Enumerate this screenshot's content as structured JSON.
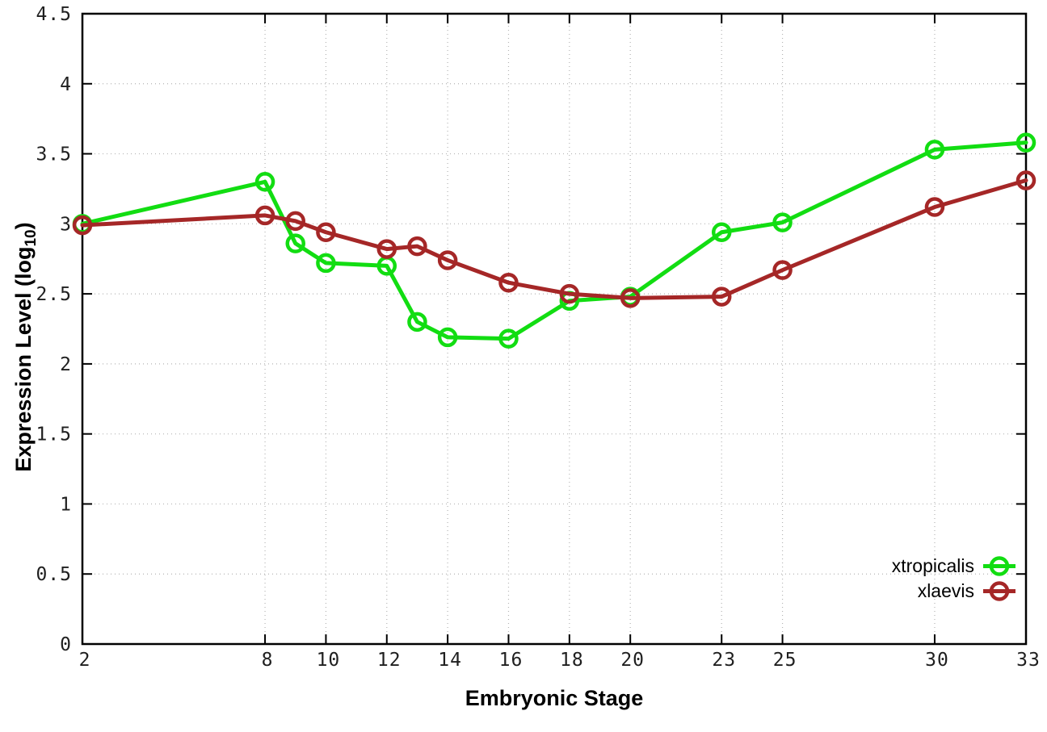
{
  "chart_data": {
    "type": "line",
    "title": "",
    "xlabel": "Embryonic Stage",
    "ylabel_prefix": "Expression Level (log",
    "ylabel_sub": "10",
    "ylabel_suffix": ")",
    "x": [
      2,
      8,
      9,
      10,
      12,
      13,
      14,
      16,
      18,
      20,
      23,
      25,
      30,
      33
    ],
    "x_ticks": [
      2,
      8,
      10,
      12,
      14,
      16,
      18,
      20,
      23,
      25,
      30,
      33
    ],
    "y_ticks": [
      0,
      0.5,
      1,
      1.5,
      2,
      2.5,
      3,
      3.5,
      4,
      4.5
    ],
    "xlim": [
      2,
      33
    ],
    "ylim": [
      0,
      4.5
    ],
    "grid": true,
    "legend_position": "inside-bottom-right",
    "series": [
      {
        "name": "xtropicalis",
        "color": "#12dd12",
        "values": [
          3.0,
          3.3,
          2.86,
          2.72,
          2.7,
          2.3,
          2.19,
          2.18,
          2.45,
          2.48,
          2.94,
          3.01,
          3.53,
          3.58
        ]
      },
      {
        "name": "xlaevis",
        "color": "#a52727",
        "values": [
          2.99,
          3.06,
          3.02,
          2.94,
          2.82,
          2.84,
          2.74,
          2.58,
          2.5,
          2.47,
          2.48,
          2.67,
          3.12,
          3.31
        ]
      }
    ],
    "style": {
      "grid_color": "#b4b4b4",
      "axis_color": "#000000",
      "tick_label_color": "#1f1f1f",
      "background": "#ffffff"
    }
  }
}
